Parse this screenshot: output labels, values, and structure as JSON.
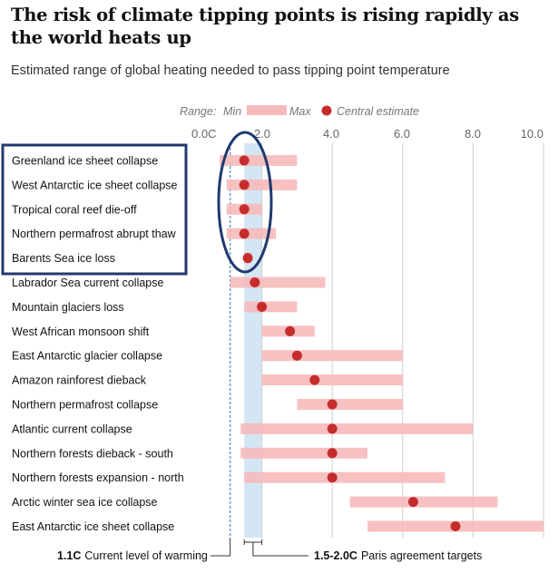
{
  "title": "The risk of climate tipping points is rising rapidly as the world heats up",
  "subtitle": "Estimated range of global heating needed to pass tipping point temperature",
  "legend": {
    "range_label": "Range:",
    "min_label": "Min",
    "max_label": "Max",
    "central_label": "Central estimate"
  },
  "colors": {
    "range_bar": "#f6babb",
    "central_dot": "#c52c2c",
    "paris_band": "#d4e6f4",
    "current_line": "#5b8ec7",
    "highlight_box": "#1f3a70",
    "gridline": "#cfcfcf",
    "axis_text": "#666666"
  },
  "chart_data": {
    "type": "range-dot",
    "xlim": [
      0,
      10
    ],
    "xticks": [
      "0.0C",
      "2.0",
      "4.0",
      "6.0",
      "8.0",
      "10.0"
    ],
    "xtick_values": [
      0,
      2,
      4,
      6,
      8,
      10
    ],
    "categories": [
      "Greenland ice sheet collapse",
      "West Antarctic ice sheet collapse",
      "Tropical coral reef die-off",
      "Northern permafrost abrupt thaw",
      "Barents Sea ice loss",
      "Labrador Sea current collapse",
      "Mountain glaciers loss",
      "West African monsoon shift",
      "East Antarctic glacier collapse",
      "Amazon rainforest dieback",
      "Northern permafrost collapse",
      "Atlantic current collapse",
      "Northern forests dieback - south",
      "Northern forests expansion - north",
      "Arctic winter sea ice collapse",
      "East Antarctic ice sheet collapse"
    ],
    "min": [
      0.8,
      1.0,
      1.0,
      1.0,
      1.5,
      1.1,
      1.5,
      2.0,
      2.0,
      2.0,
      3.0,
      1.4,
      1.4,
      1.5,
      4.5,
      5.0
    ],
    "max": [
      3.0,
      3.0,
      2.0,
      2.4,
      1.7,
      3.8,
      3.0,
      3.5,
      6.0,
      6.0,
      6.0,
      8.0,
      5.0,
      7.2,
      8.7,
      10.0
    ],
    "central": [
      1.5,
      1.5,
      1.5,
      1.5,
      1.6,
      1.8,
      2.0,
      2.8,
      3.0,
      3.5,
      4.0,
      4.0,
      4.0,
      4.0,
      6.3,
      7.5
    ],
    "highlighted_categories": [
      "Greenland ice sheet collapse",
      "West Antarctic ice sheet collapse",
      "Tropical coral reef die-off",
      "Northern permafrost abrupt thaw",
      "Barents Sea ice loss"
    ],
    "current_warming": 1.1,
    "paris_range": [
      1.5,
      2.0
    ],
    "annotations": {
      "current_value": "1.1C",
      "current_text": "Current level of warming",
      "paris_value": "1.5-2.0C",
      "paris_text": "Paris agreement targets"
    }
  }
}
